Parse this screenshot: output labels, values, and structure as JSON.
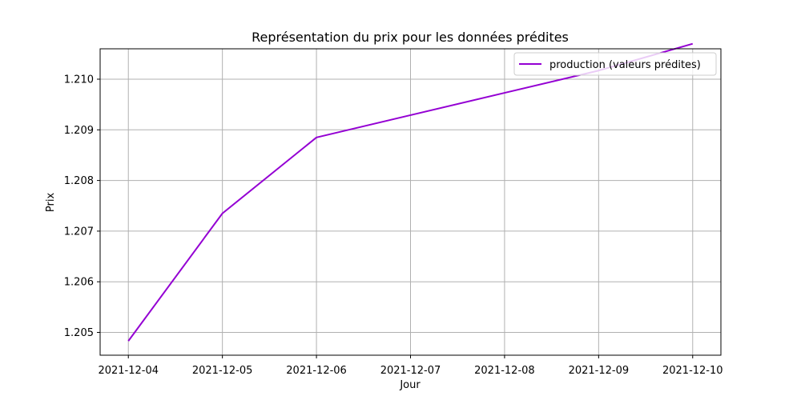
{
  "chart_data": {
    "type": "line",
    "title": "Représentation du prix pour les données prédites",
    "xlabel": "Jour",
    "ylabel": "Prix",
    "x": [
      "2021-12-04",
      "2021-12-05",
      "2021-12-06",
      "2021-12-07",
      "2021-12-08",
      "2021-12-09",
      "2021-12-10"
    ],
    "x_ticks": [
      "2021-12-04",
      "2021-12-05",
      "2021-12-06",
      "2021-12-07",
      "2021-12-08",
      "2021-12-09",
      "2021-12-10"
    ],
    "y_ticks": [
      "1.205",
      "1.206",
      "1.207",
      "1.208",
      "1.209",
      "1.210"
    ],
    "ylim": [
      1.20455,
      1.2106
    ],
    "grid": true,
    "legend_position": "top-right",
    "series": [
      {
        "name": "production (valeurs prédites)",
        "color": "#9400d3",
        "x": [
          "2021-12-04",
          "2021-12-05",
          "2021-12-06",
          "2021-12-09",
          "2021-12-10"
        ],
        "values": [
          1.20483,
          1.20735,
          1.20885,
          1.21017,
          1.2107
        ]
      }
    ]
  }
}
